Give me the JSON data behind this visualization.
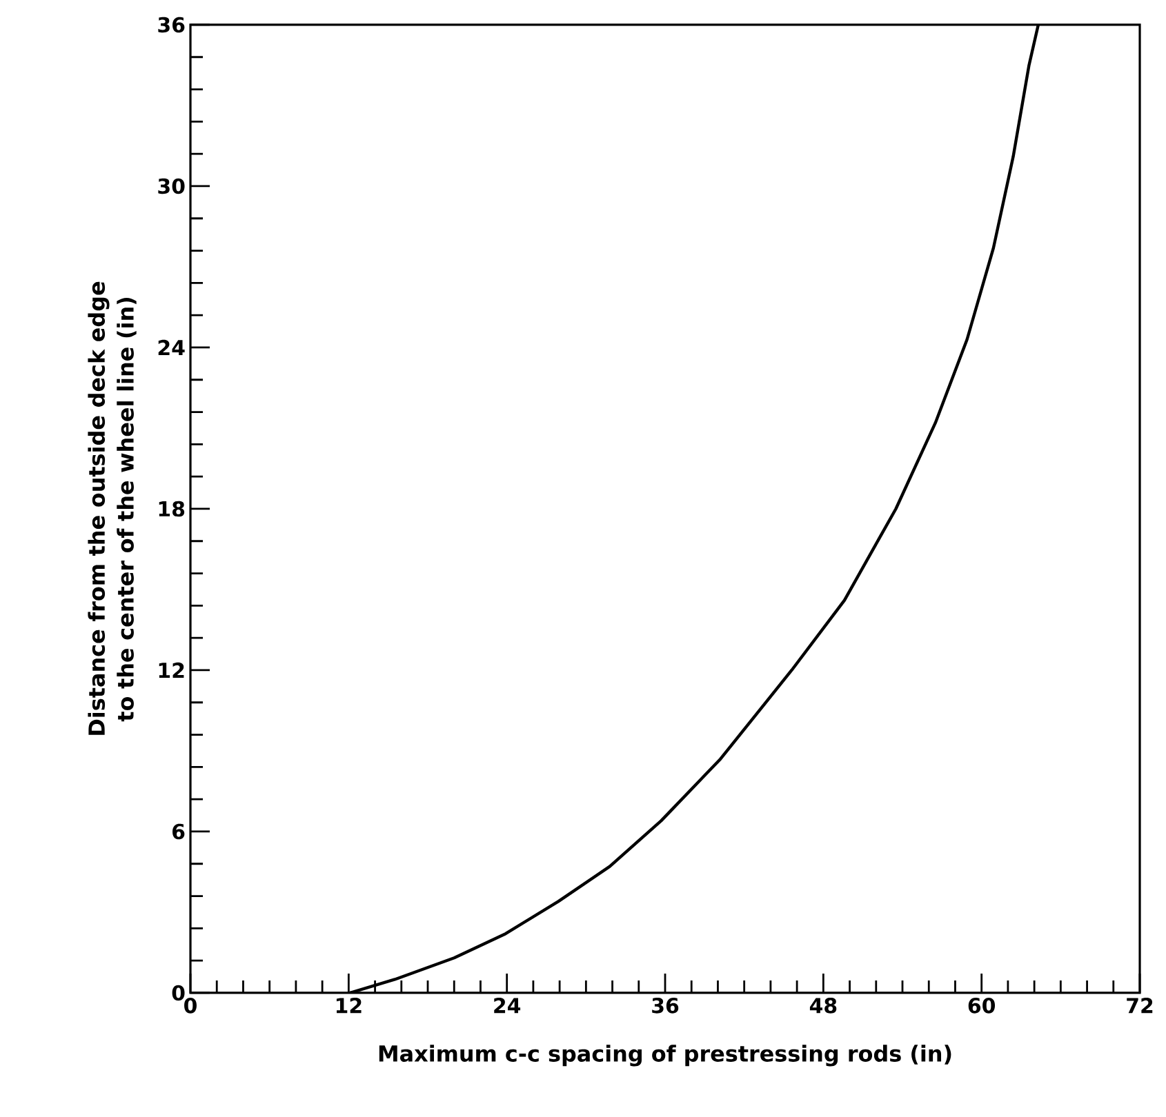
{
  "chart_data": {
    "type": "line",
    "xlabel": "Maximum c-c spacing of prestressing rods (in)",
    "ylabel": "Distance from the outside deck edge to the center of the wheel line (in)",
    "xlim": [
      0,
      72
    ],
    "ylim": [
      0,
      36
    ],
    "xticks": [
      0,
      12,
      24,
      36,
      48,
      60,
      72
    ],
    "yticks": [
      0,
      6,
      12,
      18,
      24,
      30,
      36
    ],
    "marker": "none",
    "line_style": "solid",
    "series": [
      {
        "color": "#000000",
        "x": [
          12.1,
          15.5,
          20.0,
          23.9,
          27.9,
          31.8,
          35.7,
          40.2,
          45.6,
          49.6,
          53.5,
          56.5,
          58.9,
          60.9,
          62.4,
          63.6,
          64.3
        ],
        "values": [
          0,
          0.5,
          1.3,
          2.2,
          3.4,
          4.7,
          6.4,
          8.7,
          12.0,
          14.6,
          18.0,
          21.2,
          24.3,
          27.7,
          31.1,
          34.5,
          36
        ]
      }
    ]
  }
}
